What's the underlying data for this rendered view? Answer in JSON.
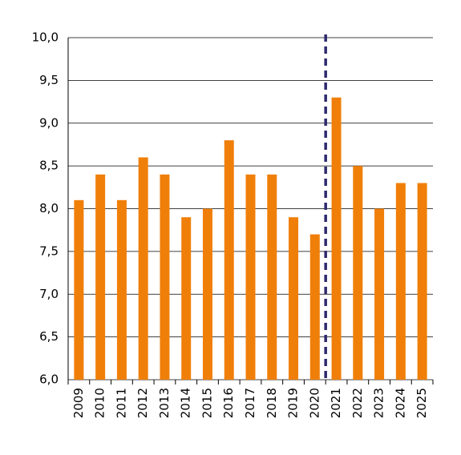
{
  "chart_data": {
    "type": "bar",
    "categories": [
      "2009",
      "2010",
      "2011",
      "2012",
      "2013",
      "2014",
      "2015",
      "2016",
      "2017",
      "2018",
      "2019",
      "2020",
      "2021",
      "2022",
      "2023",
      "2024",
      "2025"
    ],
    "values": [
      8.1,
      8.4,
      8.1,
      8.6,
      8.4,
      7.9,
      8.0,
      8.8,
      8.4,
      8.4,
      7.9,
      7.7,
      9.3,
      8.5,
      8.0,
      8.3,
      8.3
    ],
    "color": "#f07f09",
    "ylim": [
      6,
      10
    ],
    "yticks": [
      {
        "value": 6,
        "label": "6,0"
      },
      {
        "value": 6.5,
        "label": "6,5"
      },
      {
        "value": 7,
        "label": "7,0"
      },
      {
        "value": 7.5,
        "label": "7,5"
      },
      {
        "value": 8,
        "label": "8,0"
      },
      {
        "value": 8.5,
        "label": "8,5"
      },
      {
        "value": 9,
        "label": "9,0"
      },
      {
        "value": 9.5,
        "label": "9,5"
      },
      {
        "value": 10,
        "label": "10,0"
      }
    ],
    "grid": true
  }
}
